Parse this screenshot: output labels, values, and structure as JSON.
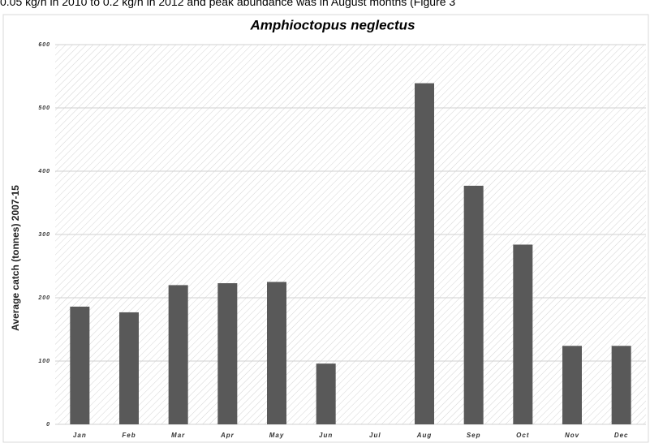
{
  "text_above": "0.05 kg/h in 2010 to 0.2 kg/h in 2012 and peak abundance was in August months (Figure 3",
  "chart_data": {
    "type": "bar",
    "title": "Amphioctopus neglectus",
    "ylabel": "Average catch (tonnes) 2007-15",
    "categories": [
      "Jan",
      "Feb",
      "Mar",
      "Apr",
      "May",
      "Jun",
      "Jul",
      "Aug",
      "Sep",
      "Oct",
      "Nov",
      "Dec"
    ],
    "values": [
      186,
      177,
      220,
      223,
      225,
      96,
      0,
      539,
      377,
      284,
      124,
      124
    ],
    "color": "#595959",
    "ylim": [
      0,
      600
    ],
    "yticks": [
      0,
      100,
      200,
      300,
      400,
      500,
      600
    ],
    "grid": true
  }
}
